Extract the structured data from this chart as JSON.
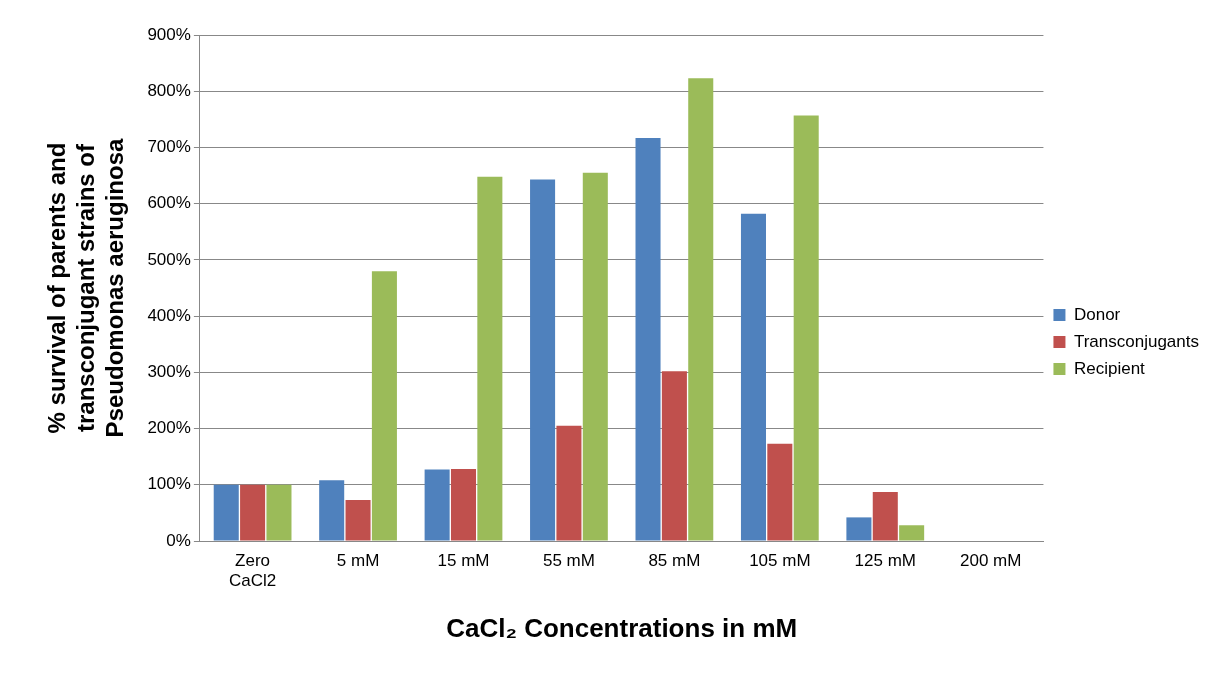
{
  "chart_data": {
    "type": "bar",
    "xlabel": "CaCl₂ Concentrations in mM",
    "ylabel": "% survival of parents and transconjugant strains of Pseudomonas aeruginosa",
    "categories": [
      "Zero CaCl2",
      "5 mM",
      "15 mM",
      "55 mM",
      "85 mM",
      "105 mM",
      "125 mM",
      "200 mM"
    ],
    "series": [
      {
        "name": "Donor",
        "color": "#4f81bd",
        "values": [
          100,
          108,
          127,
          643,
          717,
          582,
          42,
          0
        ]
      },
      {
        "name": "Transconjugants",
        "color": "#c0504d",
        "values": [
          100,
          73,
          128,
          205,
          302,
          173,
          87,
          0
        ]
      },
      {
        "name": "Recipient",
        "color": "#9bbb59",
        "values": [
          100,
          480,
          648,
          655,
          823,
          757,
          28,
          0
        ]
      }
    ],
    "ylim": [
      0,
      900
    ],
    "yticks": [
      {
        "value": 0,
        "label": "0%"
      },
      {
        "value": 100,
        "label": "100%"
      },
      {
        "value": 200,
        "label": "200%"
      },
      {
        "value": 300,
        "label": "300%"
      },
      {
        "value": 400,
        "label": "400%"
      },
      {
        "value": 500,
        "label": "500%"
      },
      {
        "value": 600,
        "label": "600%"
      },
      {
        "value": 700,
        "label": "700%"
      },
      {
        "value": 800,
        "label": "800%"
      },
      {
        "value": 900,
        "label": "900%"
      }
    ],
    "grid": "y",
    "legend": "right"
  }
}
